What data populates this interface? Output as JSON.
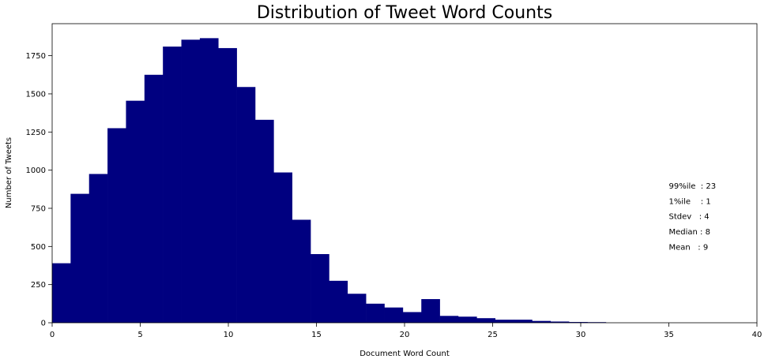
{
  "chart_data": {
    "type": "bar",
    "title": "Distribution of Tweet Word Counts",
    "xlabel": "Document Word Count",
    "ylabel": "Number of Tweets",
    "xlim": [
      0,
      40
    ],
    "ylim": [
      0,
      1960
    ],
    "grid": false,
    "bar_color": "#000080",
    "x_ticks": [
      0,
      5,
      10,
      15,
      20,
      25,
      30,
      35,
      40
    ],
    "y_ticks": [
      0,
      250,
      500,
      750,
      1000,
      1250,
      1500,
      1750
    ],
    "bins": [
      {
        "x0": 0,
        "x1": 1.0476,
        "value": 390
      },
      {
        "x0": 1.0476,
        "x1": 2.0952,
        "value": 845
      },
      {
        "x0": 2.0952,
        "x1": 3.1429,
        "value": 975
      },
      {
        "x0": 3.1429,
        "x1": 4.1905,
        "value": 1275
      },
      {
        "x0": 4.1905,
        "x1": 5.2381,
        "value": 1455
      },
      {
        "x0": 5.2381,
        "x1": 6.2857,
        "value": 1625
      },
      {
        "x0": 6.2857,
        "x1": 7.3333,
        "value": 1810
      },
      {
        "x0": 7.3333,
        "x1": 8.381,
        "value": 1855
      },
      {
        "x0": 8.381,
        "x1": 9.4286,
        "value": 1865
      },
      {
        "x0": 9.4286,
        "x1": 10.4762,
        "value": 1800
      },
      {
        "x0": 10.4762,
        "x1": 11.5238,
        "value": 1545
      },
      {
        "x0": 11.5238,
        "x1": 12.5714,
        "value": 1330
      },
      {
        "x0": 12.5714,
        "x1": 13.619,
        "value": 985
      },
      {
        "x0": 13.619,
        "x1": 14.6667,
        "value": 675
      },
      {
        "x0": 14.6667,
        "x1": 15.7143,
        "value": 450
      },
      {
        "x0": 15.7143,
        "x1": 16.7619,
        "value": 275
      },
      {
        "x0": 16.7619,
        "x1": 17.8095,
        "value": 190
      },
      {
        "x0": 17.8095,
        "x1": 18.8571,
        "value": 125
      },
      {
        "x0": 18.8571,
        "x1": 19.9048,
        "value": 100
      },
      {
        "x0": 19.9048,
        "x1": 20.9524,
        "value": 70
      },
      {
        "x0": 20.9524,
        "x1": 22.0,
        "value": 155
      },
      {
        "x0": 22.0,
        "x1": 23.0476,
        "value": 45
      },
      {
        "x0": 23.0476,
        "x1": 24.0952,
        "value": 40
      },
      {
        "x0": 24.0952,
        "x1": 25.1429,
        "value": 30
      },
      {
        "x0": 25.1429,
        "x1": 26.1905,
        "value": 20
      },
      {
        "x0": 26.1905,
        "x1": 27.2381,
        "value": 20
      },
      {
        "x0": 27.2381,
        "x1": 28.2857,
        "value": 12
      },
      {
        "x0": 28.2857,
        "x1": 29.3333,
        "value": 8
      },
      {
        "x0": 29.3333,
        "x1": 30.381,
        "value": 5
      },
      {
        "x0": 30.381,
        "x1": 31.4286,
        "value": 4
      }
    ],
    "annotations": [
      {
        "text": "99%ile  : 23",
        "x": 35,
        "y": 900
      },
      {
        "text": "1%ile    : 1",
        "x": 35,
        "y": 800
      },
      {
        "text": "Stdev   : 4",
        "x": 35,
        "y": 700
      },
      {
        "text": "Median : 8",
        "x": 35,
        "y": 600
      },
      {
        "text": "Mean   : 9",
        "x": 35,
        "y": 500
      }
    ]
  }
}
